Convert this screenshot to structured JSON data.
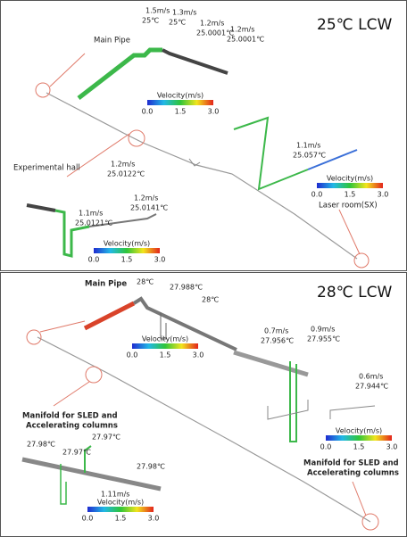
{
  "panels": [
    {
      "title": "25℃ LCW",
      "main_pipe": "Main Pipe",
      "location_labels": [
        [
          "Experimental hall"
        ],
        [
          "Laser room(SX)"
        ]
      ],
      "callouts": [
        [
          "1.5m/s",
          "25℃"
        ],
        [
          "1.3m/s",
          "25℃"
        ],
        [
          "1.2m/s",
          "25.0001℃"
        ],
        [
          "1.2m/s",
          "25.0001℃"
        ],
        [
          "1.2m/s",
          "25.0122℃"
        ],
        [
          "1.1m/s",
          "25.0121℃"
        ],
        [
          "1.2m/s",
          "25.0141℃"
        ],
        [
          "1.1m/s",
          "25.057℃"
        ]
      ],
      "colorbars": [
        {
          "title": "Velocity(m/s)",
          "ticks": [
            "0.0",
            "1.5",
            "3.0"
          ]
        },
        {
          "title": "Velocity(m/s)",
          "ticks": [
            "0.0",
            "1.5",
            "3.0"
          ]
        },
        {
          "title": "Velocity(m/s)",
          "ticks": [
            "0.0",
            "1.5",
            "3.0"
          ]
        }
      ]
    },
    {
      "title": "28℃ LCW",
      "main_pipe": "Main Pipe",
      "location_labels": [
        [
          "Manifold for SLED and",
          "Accelerating columns"
        ],
        [
          "Manifold for SLED and",
          "Accelerating columns"
        ]
      ],
      "callouts": [
        [
          "28℃"
        ],
        [
          "27.988℃"
        ],
        [
          "28℃"
        ],
        [
          "0.7m/s",
          "27.956℃"
        ],
        [
          "0.9m/s",
          "27.955℃"
        ],
        [
          "0.6m/s",
          "27.944℃"
        ],
        [
          "27.98℃"
        ],
        [
          "27.97℃"
        ],
        [
          "27.97℃"
        ],
        [
          "27.98℃"
        ],
        [
          "1.11m/s"
        ]
      ],
      "colorbars": [
        {
          "title": "Velocity(m/s)",
          "ticks": [
            "0.0",
            "1.5",
            "3.0"
          ]
        },
        {
          "title": "Velocity(m/s)",
          "ticks": [
            "0.0",
            "1.5",
            "3.0"
          ]
        },
        {
          "title": "Velocity(m/s)",
          "ticks": [
            "0.0",
            "1.5",
            "3.0"
          ]
        }
      ]
    }
  ]
}
